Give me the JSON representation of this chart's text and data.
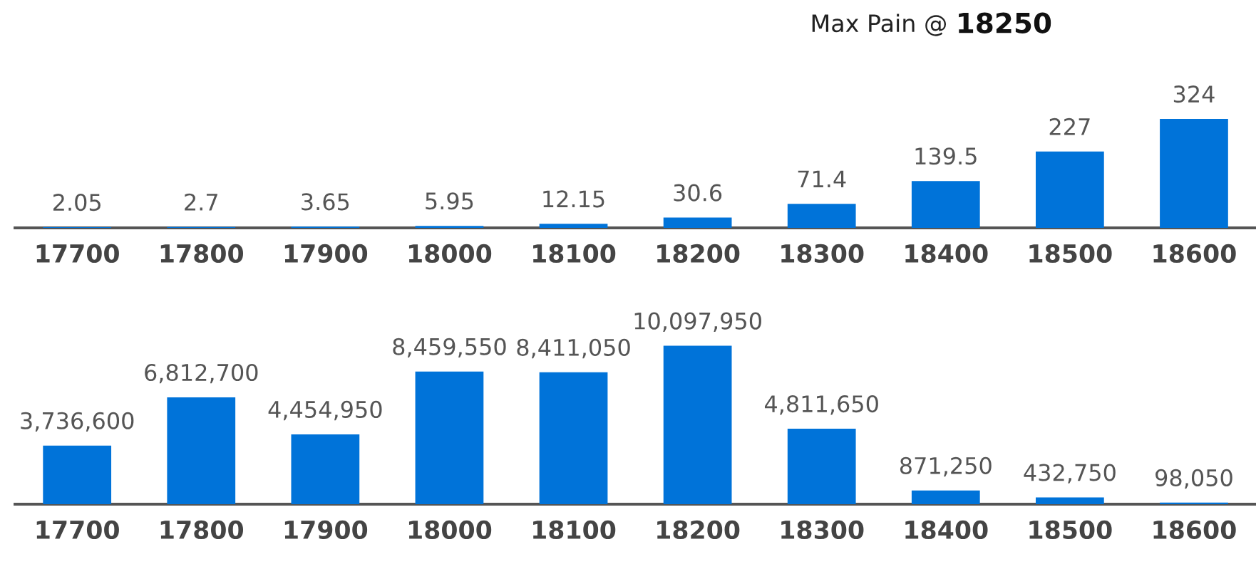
{
  "chart_data": [
    {
      "type": "bar",
      "title": "Max Pain @",
      "subtitle": "18250",
      "categories": [
        "17700",
        "17800",
        "17900",
        "18000",
        "18100",
        "18200",
        "18300",
        "18400",
        "18500",
        "18600"
      ],
      "values": [
        2.05,
        2.7,
        3.65,
        5.95,
        12.15,
        30.6,
        71.4,
        139.5,
        227,
        324
      ],
      "color": "#0073d9",
      "data_labels": true,
      "tick_labels": "x"
    },
    {
      "type": "bar",
      "categories": [
        "17700",
        "17800",
        "17900",
        "18000",
        "18100",
        "18200",
        "18300",
        "18400",
        "18500",
        "18600"
      ],
      "values": [
        3736600,
        6812700,
        4454950,
        8459550,
        8411050,
        10097950,
        4811650,
        871250,
        432750,
        98050
      ],
      "color": "#0073d9",
      "value_labels": [
        "3,736,600",
        "6,812,700",
        "4,454,950",
        "8,459,550",
        "8,411,050",
        "10,097,950",
        "4,811,650",
        "871,250",
        "432,750",
        "98,050"
      ],
      "tick_labels": "x"
    }
  ]
}
